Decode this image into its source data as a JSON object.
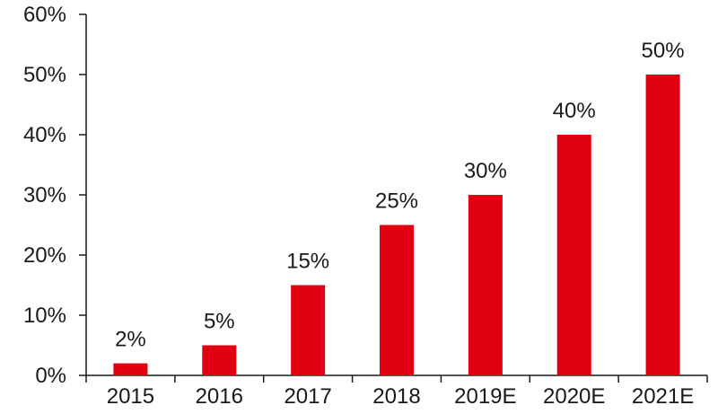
{
  "chart_data": {
    "type": "bar",
    "title": "",
    "xlabel": "",
    "ylabel": "",
    "categories": [
      "2015",
      "2016",
      "2017",
      "2018",
      "2019E",
      "2020E",
      "2021E"
    ],
    "values": [
      2,
      5,
      15,
      25,
      30,
      40,
      50
    ],
    "data_labels": [
      "2%",
      "5%",
      "15%",
      "25%",
      "30%",
      "40%",
      "50%"
    ],
    "ylim": [
      0,
      60
    ],
    "yticks": [
      0,
      10,
      20,
      30,
      40,
      50,
      60
    ],
    "ytick_labels": [
      "0%",
      "10%",
      "20%",
      "30%",
      "40%",
      "50%",
      "60%"
    ],
    "grid": false,
    "legend": "none",
    "bar_color": "#e00012",
    "axis_color": "#1a1a1a"
  }
}
